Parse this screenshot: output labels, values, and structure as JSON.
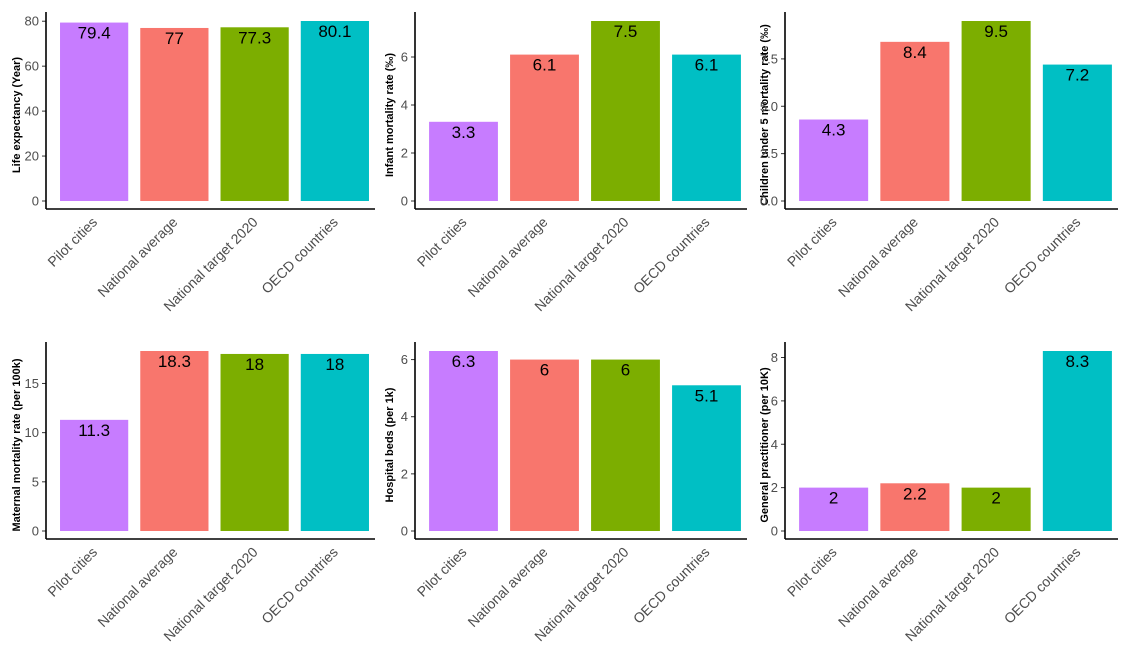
{
  "chart_data": [
    {
      "type": "bar",
      "categories": [
        "Pilot cities",
        "National average",
        "National target 2020",
        "OECD countries"
      ],
      "values": [
        79.4,
        77,
        77.3,
        80.1
      ],
      "value_labels": [
        "79.4",
        "77",
        "77.3",
        "80.1"
      ],
      "ylabel": "Life expectancy (Year)",
      "ylim": [
        0,
        80.1
      ],
      "yticks": [
        0,
        20,
        40,
        60,
        80
      ],
      "ytick_labels": [
        "0",
        "20",
        "40",
        "60",
        "80"
      ],
      "grid": false
    },
    {
      "type": "bar",
      "categories": [
        "Pilot cities",
        "National average",
        "National target 2020",
        "OECD countries"
      ],
      "values": [
        3.3,
        6.1,
        7.5,
        6.1
      ],
      "value_labels": [
        "3.3",
        "6.1",
        "7.5",
        "6.1"
      ],
      "ylabel": "Infant mortality rate (‰)",
      "ylim": [
        0,
        7.5
      ],
      "yticks": [
        0,
        2,
        4,
        6
      ],
      "ytick_labels": [
        "0",
        "2",
        "4",
        "6"
      ],
      "grid": false
    },
    {
      "type": "bar",
      "categories": [
        "Pilot cities",
        "National average",
        "National target 2020",
        "OECD countries"
      ],
      "values": [
        4.3,
        8.4,
        9.5,
        7.2
      ],
      "value_labels": [
        "4.3",
        "8.4",
        "9.5",
        "7.2"
      ],
      "ylabel": "Children under 5 mortality rate (‰)",
      "ylim": [
        0,
        9.5
      ],
      "yticks": [
        0,
        2.5,
        5,
        7.5
      ],
      "ytick_labels": [
        "0.0",
        "2.5",
        "5.0",
        "7.5"
      ],
      "grid": false
    },
    {
      "type": "bar",
      "categories": [
        "Pilot cities",
        "National average",
        "National target 2020",
        "OECD countries"
      ],
      "values": [
        11.3,
        18.3,
        18,
        18
      ],
      "value_labels": [
        "11.3",
        "18.3",
        "18",
        "18"
      ],
      "ylabel": "Maternal mortality rate (per 100k)",
      "ylim": [
        0,
        18.3
      ],
      "yticks": [
        0,
        5,
        10,
        15
      ],
      "ytick_labels": [
        "0",
        "5",
        "10",
        "15"
      ],
      "grid": false
    },
    {
      "type": "bar",
      "categories": [
        "Pilot cities",
        "National average",
        "National target 2020",
        "OECD countries"
      ],
      "values": [
        6.3,
        6,
        6,
        5.1
      ],
      "value_labels": [
        "6.3",
        "6",
        "6",
        "5.1"
      ],
      "ylabel": "Hospital beds (per 1k)",
      "ylim": [
        0,
        6.3
      ],
      "yticks": [
        0,
        2,
        4,
        6
      ],
      "ytick_labels": [
        "0",
        "2",
        "4",
        "6"
      ],
      "grid": false
    },
    {
      "type": "bar",
      "categories": [
        "Pilot cities",
        "National average",
        "National target 2020",
        "OECD countries"
      ],
      "values": [
        2,
        2.2,
        2,
        8.3
      ],
      "value_labels": [
        "2",
        "2.2",
        "2",
        "8.3"
      ],
      "ylabel": "General practitioner (per 10K)",
      "ylim": [
        0,
        8.3
      ],
      "yticks": [
        0,
        2,
        4,
        6,
        8
      ],
      "ytick_labels": [
        "0",
        "2",
        "4",
        "6",
        "8"
      ],
      "grid": false
    }
  ],
  "colors": [
    "#C77CFF",
    "#F8766D",
    "#7CAE00",
    "#00BFC4"
  ]
}
